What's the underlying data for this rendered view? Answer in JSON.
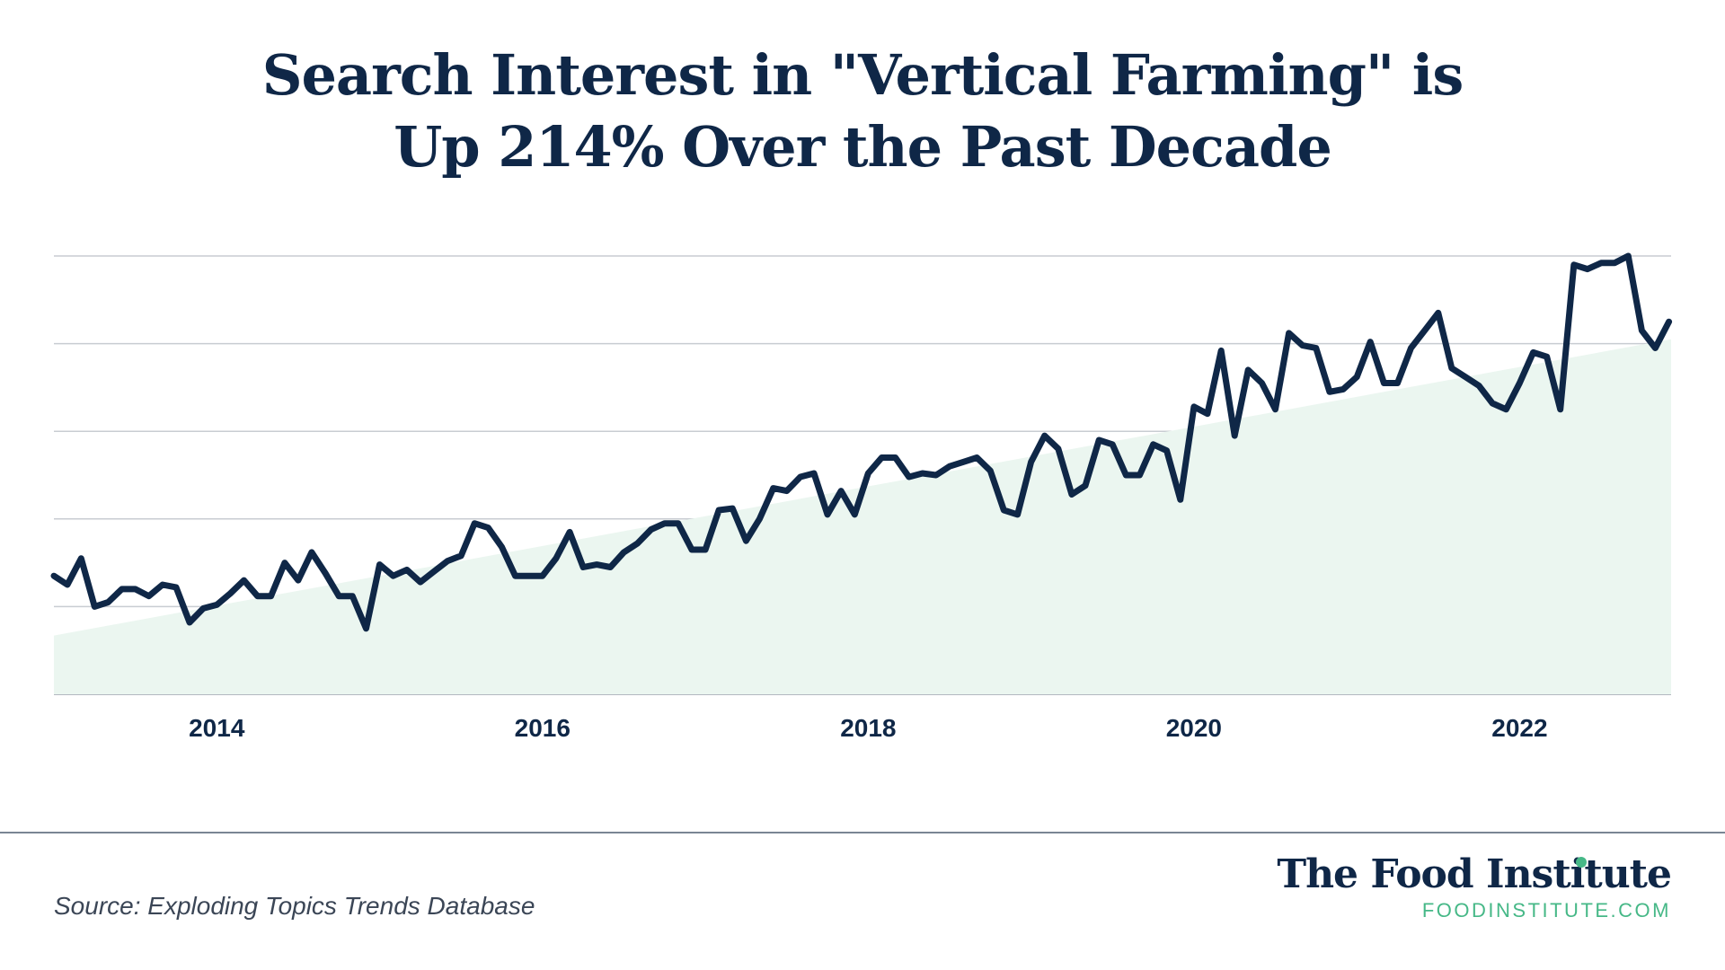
{
  "title": {
    "line1": "Search Interest in \"Vertical Farming\" is",
    "line2": "Up 214% Over the Past Decade"
  },
  "source": "Source: Exploding Topics Trends Database",
  "brand": {
    "name": "The Food Institute",
    "url": "FOODINSTITUTE.COM"
  },
  "colors": {
    "line": "#0f2747",
    "area": "#ebf6f0",
    "grid": "#c8ccd2",
    "axis_text": "#0f2747",
    "brand_accent": "#46b887"
  },
  "chart_data": {
    "type": "line",
    "xlabel": "",
    "ylabel": "",
    "y_tick_labels_shown": false,
    "grid": "horizontal",
    "xlim": [
      2013.0,
      2022.93
    ],
    "ylim": [
      0,
      5
    ],
    "x_ticks": [
      2014,
      2016,
      2018,
      2020,
      2022
    ],
    "trend_area": {
      "start": [
        2013.0,
        0.67
      ],
      "end": [
        2022.93,
        4.05
      ]
    },
    "series": [
      {
        "x": [
          2013.0,
          2013.083,
          2013.167,
          2013.25,
          2013.333,
          2013.417,
          2013.5,
          2013.583,
          2013.667,
          2013.75,
          2013.833,
          2013.917,
          2014.0,
          2014.083,
          2014.167,
          2014.25,
          2014.333,
          2014.417,
          2014.5,
          2014.583,
          2014.667,
          2014.75,
          2014.833,
          2014.917,
          2015.0,
          2015.083,
          2015.167,
          2015.25,
          2015.333,
          2015.417,
          2015.5,
          2015.583,
          2015.667,
          2015.75,
          2015.833,
          2015.917,
          2016.0,
          2016.083,
          2016.167,
          2016.25,
          2016.333,
          2016.417,
          2016.5,
          2016.583,
          2016.667,
          2016.75,
          2016.833,
          2016.917,
          2017.0,
          2017.083,
          2017.167,
          2017.25,
          2017.333,
          2017.417,
          2017.5,
          2017.583,
          2017.667,
          2017.75,
          2017.833,
          2017.917,
          2018.0,
          2018.083,
          2018.167,
          2018.25,
          2018.333,
          2018.417,
          2018.5,
          2018.583,
          2018.667,
          2018.75,
          2018.833,
          2018.917,
          2019.0,
          2019.083,
          2019.167,
          2019.25,
          2019.333,
          2019.417,
          2019.5,
          2019.583,
          2019.667,
          2019.75,
          2019.833,
          2019.917,
          2020.0,
          2020.083,
          2020.167,
          2020.25,
          2020.333,
          2020.417,
          2020.5,
          2020.583,
          2020.667,
          2020.75,
          2020.833,
          2020.917,
          2021.0,
          2021.083,
          2021.167,
          2021.25,
          2021.333,
          2021.417,
          2021.5,
          2021.583,
          2021.667,
          2021.75,
          2021.833,
          2021.917,
          2022.0,
          2022.083,
          2022.167,
          2022.25,
          2022.333,
          2022.417,
          2022.5,
          2022.583,
          2022.667,
          2022.75,
          2022.833,
          2022.917
        ],
        "values": [
          1.35,
          1.25,
          1.55,
          1.0,
          1.05,
          1.2,
          1.2,
          1.12,
          1.25,
          1.22,
          0.82,
          0.98,
          1.02,
          1.15,
          1.3,
          1.12,
          1.12,
          1.5,
          1.3,
          1.62,
          1.38,
          1.12,
          1.12,
          0.75,
          1.48,
          1.35,
          1.42,
          1.28,
          1.4,
          1.52,
          1.58,
          1.95,
          1.9,
          1.68,
          1.35,
          1.35,
          1.35,
          1.55,
          1.85,
          1.45,
          1.48,
          1.45,
          1.62,
          1.72,
          1.88,
          1.95,
          1.95,
          1.65,
          1.65,
          2.1,
          2.12,
          1.75,
          2.0,
          2.35,
          2.32,
          2.48,
          2.52,
          2.05,
          2.32,
          2.05,
          2.52,
          2.7,
          2.7,
          2.48,
          2.52,
          2.5,
          2.6,
          2.65,
          2.7,
          2.55,
          2.1,
          2.05,
          2.65,
          2.95,
          2.8,
          2.28,
          2.38,
          2.9,
          2.85,
          2.5,
          2.5,
          2.85,
          2.78,
          2.22,
          3.28,
          3.2,
          3.92,
          2.95,
          3.7,
          3.55,
          3.25,
          4.12,
          3.98,
          3.95,
          3.45,
          3.48,
          3.62,
          4.02,
          3.55,
          3.55,
          3.95,
          4.15,
          4.35,
          3.72,
          3.62,
          3.52,
          3.32,
          3.25,
          3.55,
          3.9,
          3.85,
          3.25,
          4.9,
          4.85,
          4.92,
          4.92,
          5.0,
          4.15,
          3.95,
          4.25
        ]
      }
    ]
  }
}
